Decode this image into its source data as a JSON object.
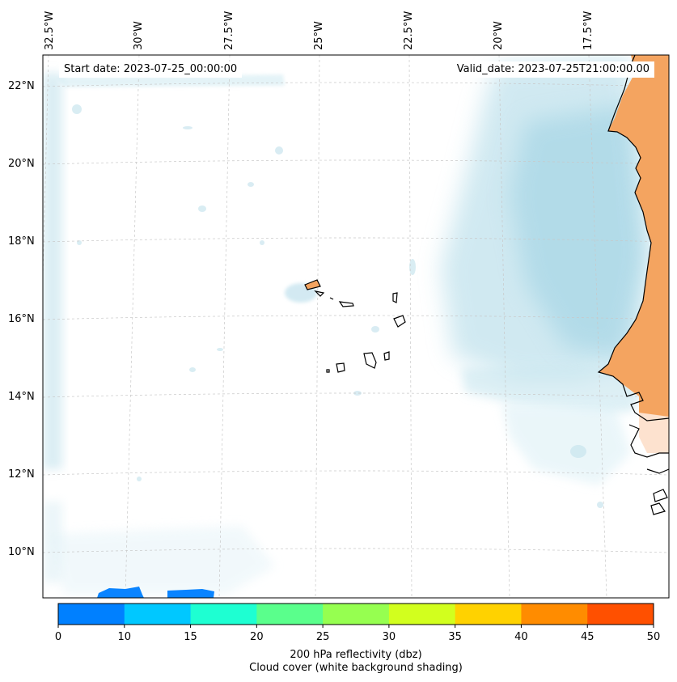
{
  "map": {
    "start_date": "Start date: 2023-07-25_00:00:00",
    "valid_date": "Valid_date: 2023-07-25T21:00:00.00",
    "lat_labels": [
      "22°N",
      "20°N",
      "18°N",
      "16°N",
      "14°N",
      "12°N",
      "10°N"
    ],
    "lon_labels": [
      "32.5°W",
      "30°W",
      "27.5°W",
      "25°W",
      "22.5°W",
      "20°W",
      "17.5°W"
    ],
    "features": {
      "landmass": "West Africa coast",
      "islands": "Cape Verde islands"
    }
  },
  "colorbar": {
    "ticks": [
      "0",
      "10",
      "15",
      "20",
      "25",
      "30",
      "35",
      "40",
      "45",
      "50"
    ],
    "colors": [
      "#0080ff",
      "#00c8ff",
      "#1effd2",
      "#5aff8c",
      "#96ff50",
      "#d2ff1e",
      "#ffd200",
      "#ff8c00",
      "#ff5000"
    ],
    "label": "200 hPa reflectivity (dbz)",
    "sublabel": "Cloud cover (white background shading)"
  },
  "colors": {
    "cloud": "#aad8e6",
    "land_warm": "#f4a460",
    "coastline": "#000000",
    "reflectivity_blob": "#0a84ff"
  }
}
